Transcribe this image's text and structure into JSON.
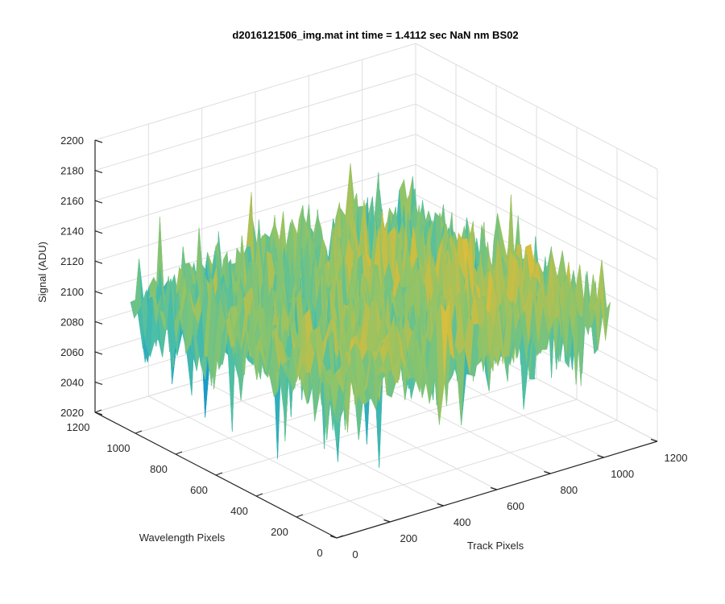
{
  "chart_data": {
    "type": "surface",
    "title": "d2016121506_img.mat int time = 1.4112 sec  NaN nm BS02",
    "xlabel": "Track Pixels",
    "ylabel": "Wavelength Pixels",
    "zlabel": "Signal (ADU)",
    "xlim": [
      0,
      1200
    ],
    "ylim": [
      0,
      1200
    ],
    "zlim": [
      2020,
      2200
    ],
    "xticks": [
      "0",
      "200",
      "400",
      "600",
      "800",
      "1000",
      "1200"
    ],
    "yticks": [
      "0",
      "200",
      "400",
      "600",
      "800",
      "1000",
      "1200"
    ],
    "zticks": [
      "2020",
      "2040",
      "2060",
      "2080",
      "2100",
      "2120",
      "2140",
      "2160",
      "2180",
      "2200"
    ],
    "grid": true,
    "data_extent": {
      "x": [
        0,
        1024
      ],
      "y": [
        0,
        1024
      ]
    },
    "signal": {
      "mean": 2110,
      "typical_min": 2055,
      "typical_max": 2160
    },
    "colormap": [
      "#0072bd",
      "#1fa3c9",
      "#4dbfa6",
      "#8cc46b",
      "#cfbd40",
      "#f0c23a"
    ]
  }
}
